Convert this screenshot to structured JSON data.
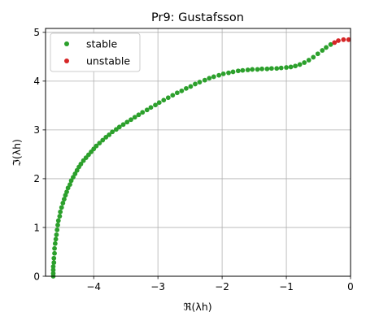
{
  "chart_data": {
    "type": "scatter",
    "title": "Pr9: Gustafsson",
    "xlabel": "ℜ(λh)",
    "ylabel": "ℑ(λh)",
    "xlim": [
      -4.75,
      0
    ],
    "ylim": [
      0,
      5.08
    ],
    "xticks": [
      -4,
      -3,
      -2,
      -1,
      0
    ],
    "yticks": [
      0,
      1,
      2,
      3,
      4,
      5
    ],
    "xtick_labels": [
      "−4",
      "−3",
      "−2",
      "−1",
      "0"
    ],
    "ytick_labels": [
      "0",
      "1",
      "2",
      "3",
      "4",
      "5"
    ],
    "grid": true,
    "legend": "top-left",
    "series": [
      {
        "name": "stable",
        "color": "#2ca02c",
        "x": [
          -4.63,
          -4.63,
          -4.63,
          -4.63,
          -4.62,
          -4.62,
          -4.61,
          -4.61,
          -4.6,
          -4.59,
          -4.58,
          -4.57,
          -4.56,
          -4.55,
          -4.53,
          -4.52,
          -4.5,
          -4.48,
          -4.46,
          -4.44,
          -4.42,
          -4.4,
          -4.37,
          -4.35,
          -4.32,
          -4.29,
          -4.26,
          -4.23,
          -4.2,
          -4.16,
          -4.12,
          -4.08,
          -4.04,
          -4.0,
          -3.96,
          -3.91,
          -3.86,
          -3.81,
          -3.76,
          -3.71,
          -3.65,
          -3.6,
          -3.54,
          -3.48,
          -3.42,
          -3.36,
          -3.3,
          -3.24,
          -3.17,
          -3.11,
          -3.04,
          -2.98,
          -2.91,
          -2.84,
          -2.77,
          -2.7,
          -2.63,
          -2.56,
          -2.49,
          -2.42,
          -2.35,
          -2.27,
          -2.2,
          -2.13,
          -2.05,
          -1.98,
          -1.9,
          -1.83,
          -1.75,
          -1.68,
          -1.6,
          -1.53,
          -1.45,
          -1.38,
          -1.3,
          -1.23,
          -1.15,
          -1.08,
          -1.0,
          -0.93,
          -0.86,
          -0.79,
          -0.72,
          -0.65,
          -0.58,
          -0.51,
          -0.44,
          -0.38,
          -0.31
        ],
        "y": [
          0.0,
          0.06,
          0.13,
          0.2,
          0.28,
          0.37,
          0.47,
          0.57,
          0.67,
          0.76,
          0.85,
          0.95,
          1.05,
          1.14,
          1.23,
          1.32,
          1.41,
          1.5,
          1.58,
          1.66,
          1.73,
          1.81,
          1.88,
          1.96,
          2.03,
          2.1,
          2.17,
          2.24,
          2.3,
          2.37,
          2.43,
          2.49,
          2.55,
          2.61,
          2.67,
          2.73,
          2.79,
          2.85,
          2.9,
          2.96,
          3.01,
          3.06,
          3.11,
          3.16,
          3.21,
          3.26,
          3.31,
          3.36,
          3.41,
          3.46,
          3.51,
          3.56,
          3.61,
          3.66,
          3.71,
          3.76,
          3.8,
          3.85,
          3.89,
          3.94,
          3.98,
          4.02,
          4.06,
          4.09,
          4.12,
          4.15,
          4.17,
          4.19,
          4.21,
          4.22,
          4.23,
          4.24,
          4.24,
          4.25,
          4.25,
          4.26,
          4.26,
          4.27,
          4.28,
          4.29,
          4.31,
          4.34,
          4.38,
          4.43,
          4.49,
          4.56,
          4.63,
          4.69,
          4.75
        ]
      },
      {
        "name": "unstable",
        "color": "#d62728",
        "x": [
          -0.25,
          -0.19,
          -0.11,
          -0.03
        ],
        "y": [
          4.79,
          4.83,
          4.85,
          4.85
        ]
      }
    ]
  }
}
